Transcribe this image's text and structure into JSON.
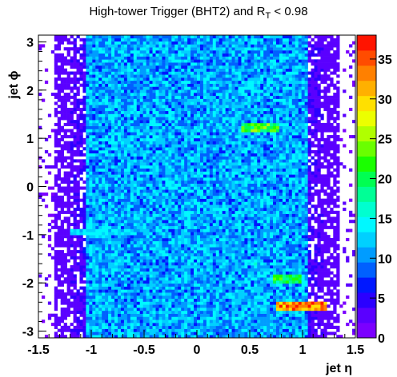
{
  "chart_data": {
    "type": "heatmap",
    "title": {
      "prefix": "High-tower Trigger (BHT2) and R",
      "subscript": "T",
      "suffix": " < 0.98"
    },
    "xlabel": "jet η",
    "ylabel": "jet ϕ",
    "xlim": [
      -1.5,
      1.5
    ],
    "ylim": [
      -3.14,
      3.14
    ],
    "x_ticks": [
      "-1.5",
      "-1",
      "-0.5",
      "0",
      "0.5",
      "1",
      "1.5"
    ],
    "y_ticks": [
      "-3",
      "-2",
      "-1",
      "0",
      "1",
      "2",
      "3"
    ],
    "x_tick_values": [
      -1.5,
      -1,
      -0.5,
      0,
      0.5,
      1,
      1.5
    ],
    "y_tick_values": [
      -3,
      -2,
      -1,
      0,
      1,
      2,
      3
    ],
    "bins": {
      "nx": 100,
      "ny": 100
    },
    "populated_eta_range": [
      -1.35,
      1.35
    ],
    "typical_counts": {
      "core": 11,
      "edge": 2
    },
    "hotspots": [
      {
        "eta_range": [
          0.42,
          0.78
        ],
        "phi": 1.22,
        "counts": 22
      },
      {
        "eta_range": [
          0.72,
          0.98
        ],
        "phi": -1.92,
        "counts": 20
      },
      {
        "eta_range": [
          0.75,
          1.22
        ],
        "phi": -2.47,
        "counts": 33
      },
      {
        "eta_range": [
          0.48,
          0.58
        ],
        "phi": -1.58,
        "counts": 15
      },
      {
        "eta_range": [
          -1.2,
          -0.6
        ],
        "phi": -0.95,
        "counts": 13
      }
    ],
    "colorbar": {
      "zlim": [
        0,
        38
      ],
      "ticks": [
        "0",
        "5",
        "10",
        "15",
        "20",
        "25",
        "30",
        "35"
      ],
      "tick_values": [
        0,
        5,
        10,
        15,
        20,
        25,
        30,
        35
      ],
      "palette": [
        "#7b00ff",
        "#5a00ff",
        "#2b00ff",
        "#0018ff",
        "#0060ff",
        "#009cff",
        "#00d0ff",
        "#00f8ff",
        "#00ffd0",
        "#00ff96",
        "#00ff52",
        "#1aff00",
        "#6aff00",
        "#b0ff00",
        "#ecff00",
        "#ffe000",
        "#ffb000",
        "#ff8000",
        "#ff4c00",
        "#ff1400"
      ]
    }
  }
}
